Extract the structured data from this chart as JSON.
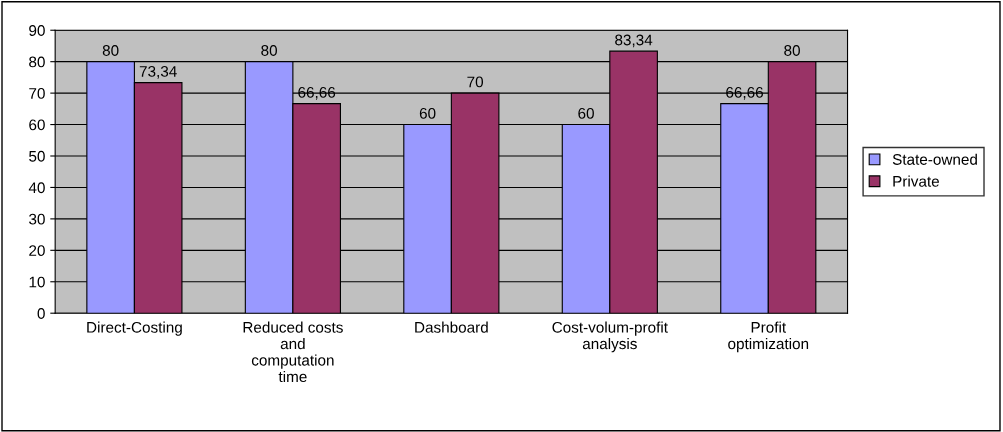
{
  "chart_data": {
    "type": "bar",
    "categories": [
      "Direct-Costing",
      "Reduced costs and computation time",
      "Dashboard",
      "Cost-volum-profit analysis",
      "Profit optimization"
    ],
    "series": [
      {
        "name": "State-owned",
        "color": "#9999ff",
        "values": [
          80,
          80,
          60,
          60,
          66.66
        ],
        "value_labels": [
          "80",
          "80",
          "60",
          "60",
          "66,66"
        ]
      },
      {
        "name": "Private",
        "color": "#993366",
        "values": [
          73.34,
          66.66,
          70,
          83.34,
          80
        ],
        "value_labels": [
          "73,34",
          "66,66",
          "70",
          "83,34",
          "80"
        ]
      }
    ],
    "ylim": [
      0,
      90
    ],
    "yticks": [
      0,
      10,
      20,
      30,
      40,
      50,
      60,
      70,
      80,
      90
    ],
    "grid": "y",
    "legend": "right"
  }
}
